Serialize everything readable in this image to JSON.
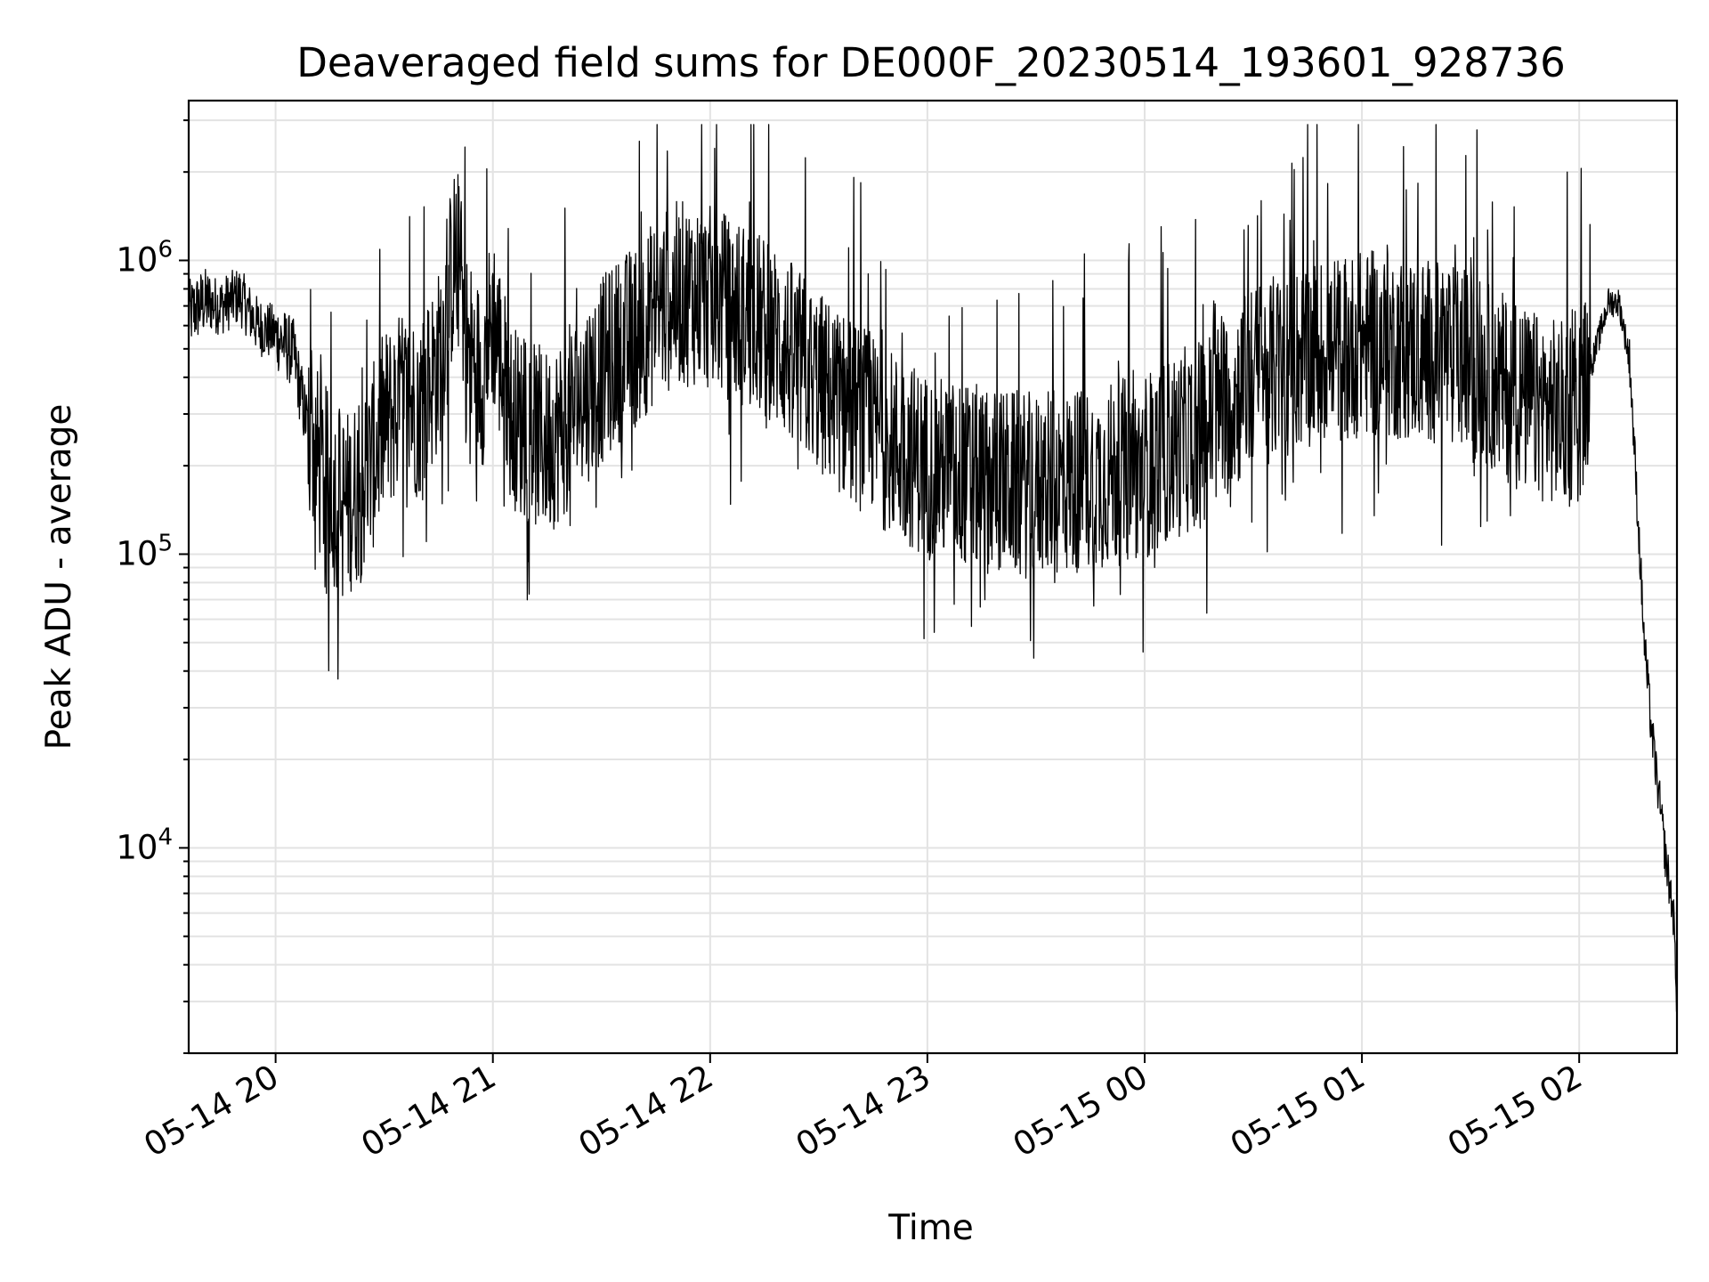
{
  "chart_data": {
    "type": "line",
    "title": "Deaveraged field sums for DE000F_20230514_193601_928736",
    "xlabel": "Time",
    "ylabel": "Peak ADU - average",
    "yscale": "log",
    "xlim": [
      "2023-05-14 19:36",
      "2023-05-15 02:27"
    ],
    "ylim": [
      2000,
      3500000
    ],
    "grid": true,
    "x_ticks": [
      "05-14 20",
      "05-14 21",
      "05-14 22",
      "05-14 23",
      "05-15 00",
      "05-15 01",
      "05-15 02"
    ],
    "y_ticks": [
      {
        "base": "10",
        "exp": "4"
      },
      {
        "base": "10",
        "exp": "5"
      },
      {
        "base": "10",
        "exp": "6"
      }
    ],
    "series": [
      {
        "color": "#000000",
        "points": [
          [
            "2023-05-14 19:36",
            650000
          ],
          [
            "2023-05-14 19:40",
            720000
          ],
          [
            "2023-05-14 19:45",
            700000
          ],
          [
            "2023-05-14 19:50",
            760000
          ],
          [
            "2023-05-14 19:55",
            600000
          ],
          [
            "2023-05-14 20:00",
            560000
          ],
          [
            "2023-05-14 20:05",
            480000
          ],
          [
            "2023-05-14 20:08",
            300000
          ],
          [
            "2023-05-14 20:12",
            200000
          ],
          [
            "2023-05-14 20:16",
            160000
          ],
          [
            "2023-05-14 20:20",
            150000
          ],
          [
            "2023-05-14 20:25",
            180000
          ],
          [
            "2023-05-14 20:30",
            280000
          ],
          [
            "2023-05-14 20:35",
            330000
          ],
          [
            "2023-05-14 20:40",
            320000
          ],
          [
            "2023-05-14 20:45",
            450000
          ],
          [
            "2023-05-14 20:48",
            800000
          ],
          [
            "2023-05-14 20:50",
            1100000
          ],
          [
            "2023-05-14 20:53",
            500000
          ],
          [
            "2023-05-14 20:57",
            400000
          ],
          [
            "2023-05-14 21:00",
            650000
          ],
          [
            "2023-05-14 21:05",
            300000
          ],
          [
            "2023-05-14 21:10",
            260000
          ],
          [
            "2023-05-14 21:15",
            240000
          ],
          [
            "2023-05-14 21:20",
            280000
          ],
          [
            "2023-05-14 21:25",
            350000
          ],
          [
            "2023-05-14 21:30",
            420000
          ],
          [
            "2023-05-14 21:35",
            500000
          ],
          [
            "2023-05-14 21:40",
            560000
          ],
          [
            "2023-05-14 21:45",
            680000
          ],
          [
            "2023-05-14 21:50",
            760000
          ],
          [
            "2023-05-14 21:55",
            780000
          ],
          [
            "2023-05-14 22:00",
            740000
          ],
          [
            "2023-05-14 22:10",
            650000
          ],
          [
            "2023-05-14 22:20",
            520000
          ],
          [
            "2023-05-14 22:30",
            380000
          ],
          [
            "2023-05-14 22:40",
            300000
          ],
          [
            "2023-05-14 22:50",
            240000
          ],
          [
            "2023-05-14 23:00",
            200000
          ],
          [
            "2023-05-14 23:15",
            180000
          ],
          [
            "2023-05-14 23:30",
            170000
          ],
          [
            "2023-05-14 23:45",
            180000
          ],
          [
            "2023-05-15 00:00",
            200000
          ],
          [
            "2023-05-15 00:15",
            260000
          ],
          [
            "2023-05-15 00:30",
            400000
          ],
          [
            "2023-05-15 00:45",
            480000
          ],
          [
            "2023-05-15 01:00",
            520000
          ],
          [
            "2023-05-15 01:15",
            500000
          ],
          [
            "2023-05-15 01:30",
            450000
          ],
          [
            "2023-05-15 01:45",
            330000
          ],
          [
            "2023-05-15 01:55",
            300000
          ],
          [
            "2023-05-15 02:00",
            320000
          ],
          [
            "2023-05-15 02:05",
            520000
          ],
          [
            "2023-05-15 02:08",
            720000
          ],
          [
            "2023-05-15 02:11",
            720000
          ],
          [
            "2023-05-15 02:14",
            450000
          ],
          [
            "2023-05-15 02:16",
            150000
          ],
          [
            "2023-05-15 02:18",
            50000
          ],
          [
            "2023-05-15 02:20",
            25000
          ],
          [
            "2023-05-15 02:22",
            15000
          ],
          [
            "2023-05-15 02:24",
            9000
          ],
          [
            "2023-05-15 02:26",
            6000
          ],
          [
            "2023-05-15 02:27",
            3000
          ]
        ]
      }
    ]
  }
}
